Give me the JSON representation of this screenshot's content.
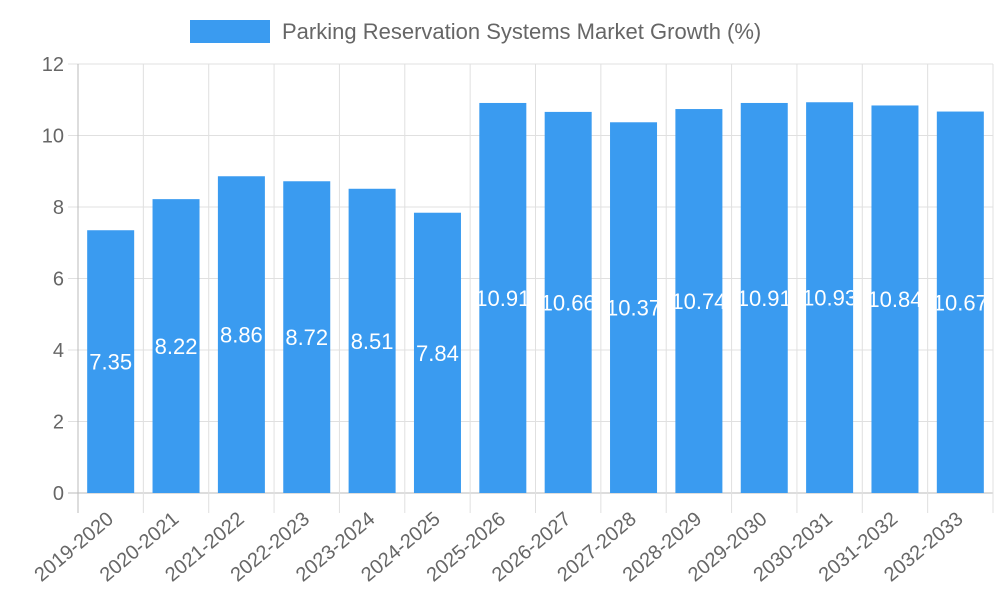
{
  "chart_data": {
    "type": "bar",
    "title": "",
    "legend": [
      {
        "label": "Parking Reservation Systems Market Growth (%)",
        "color": "#3a9bf0"
      }
    ],
    "legend_position": "top-center",
    "categories": [
      "2019-2020",
      "2020-2021",
      "2021-2022",
      "2022-2023",
      "2023-2024",
      "2024-2025",
      "2025-2026",
      "2026-2027",
      "2027-2028",
      "2028-2029",
      "2029-2030",
      "2030-2031",
      "2031-2032",
      "2032-2033"
    ],
    "values": [
      7.35,
      8.22,
      8.86,
      8.72,
      8.51,
      7.84,
      10.91,
      10.66,
      10.37,
      10.74,
      10.91,
      10.93,
      10.84,
      10.67
    ],
    "data_labels": [
      "7.35",
      "8.22",
      "8.86",
      "8.72",
      "8.51",
      "7.84",
      "10.91",
      "10.66",
      "10.37",
      "10.74",
      "10.91",
      "10.93",
      "10.84",
      "10.67"
    ],
    "xlabel": "",
    "ylabel": "",
    "ylim": [
      0,
      12
    ],
    "yticks": [
      "0",
      "2",
      "4",
      "6",
      "8",
      "10",
      "12"
    ],
    "grid": true,
    "bar_color": "#3a9bf0"
  }
}
